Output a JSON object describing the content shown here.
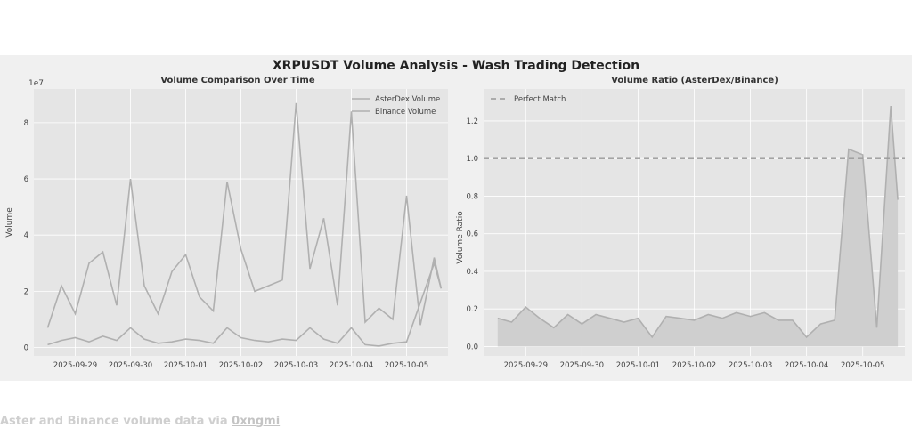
{
  "figure_title": "XRPUSDT Volume Analysis - Wash Trading Detection",
  "caption": {
    "text": "Aster and Binance volume data via ",
    "link_text": "0xngmi"
  },
  "colors": {
    "background": "#f0f0f0",
    "axes_bg": "#e5e5e5",
    "line": "#b0b0b0",
    "grid": "#ffffff",
    "reference": "#999999",
    "fill": "#cfcfcf"
  },
  "chart_data": [
    {
      "type": "line",
      "title": "Volume Comparison Over Time",
      "xlabel": "",
      "ylabel": "Volume",
      "scale_label": "1e7",
      "y_scale": 10000000,
      "ylim": [
        -3000000,
        92000000
      ],
      "xlim": [
        "2025-09-28 06:00",
        "2025-10-05 18:00"
      ],
      "y_ticks": [
        0,
        20000000,
        40000000,
        60000000,
        80000000
      ],
      "y_tick_labels": [
        "0",
        "2",
        "4",
        "6",
        "8"
      ],
      "x_ticks": [
        "2025-09-29",
        "2025-09-30",
        "2025-10-01",
        "2025-10-02",
        "2025-10-03",
        "2025-10-04",
        "2025-10-05"
      ],
      "grid": true,
      "legend_position": "top-right",
      "series": [
        {
          "name": "AsterDex Volume",
          "x": [
            "2025-09-28 12:00",
            "2025-09-28 18:00",
            "2025-09-29 00:00",
            "2025-09-29 06:00",
            "2025-09-29 12:00",
            "2025-09-29 18:00",
            "2025-09-30 00:00",
            "2025-09-30 06:00",
            "2025-09-30 12:00",
            "2025-09-30 18:00",
            "2025-10-01 00:00",
            "2025-10-01 06:00",
            "2025-10-01 12:00",
            "2025-10-01 18:00",
            "2025-10-02 00:00",
            "2025-10-02 06:00",
            "2025-10-02 12:00",
            "2025-10-02 18:00",
            "2025-10-03 00:00",
            "2025-10-03 06:00",
            "2025-10-03 12:00",
            "2025-10-03 18:00",
            "2025-10-04 00:00",
            "2025-10-04 06:00",
            "2025-10-04 12:00",
            "2025-10-04 18:00",
            "2025-10-05 00:00",
            "2025-10-05 06:00",
            "2025-10-05 12:00",
            "2025-10-05 15:00"
          ],
          "values": [
            1000000,
            2500000,
            3500000,
            2000000,
            4000000,
            2500000,
            7000000,
            3000000,
            1500000,
            2000000,
            3000000,
            2500000,
            1500000,
            7000000,
            3500000,
            2500000,
            2000000,
            3000000,
            2500000,
            7000000,
            3000000,
            1500000,
            7000000,
            1000000,
            500000,
            1500000,
            2000000,
            16000000,
            30000000,
            21000000
          ]
        },
        {
          "name": "Binance Volume",
          "x": [
            "2025-09-28 12:00",
            "2025-09-28 18:00",
            "2025-09-29 00:00",
            "2025-09-29 06:00",
            "2025-09-29 12:00",
            "2025-09-29 18:00",
            "2025-09-30 00:00",
            "2025-09-30 06:00",
            "2025-09-30 12:00",
            "2025-09-30 18:00",
            "2025-10-01 00:00",
            "2025-10-01 06:00",
            "2025-10-01 12:00",
            "2025-10-01 18:00",
            "2025-10-02 00:00",
            "2025-10-02 06:00",
            "2025-10-02 12:00",
            "2025-10-02 18:00",
            "2025-10-03 00:00",
            "2025-10-03 06:00",
            "2025-10-03 12:00",
            "2025-10-03 18:00",
            "2025-10-04 00:00",
            "2025-10-04 06:00",
            "2025-10-04 12:00",
            "2025-10-04 18:00",
            "2025-10-05 00:00",
            "2025-10-05 06:00",
            "2025-10-05 12:00",
            "2025-10-05 15:00"
          ],
          "values": [
            7000000,
            22000000,
            12000000,
            30000000,
            34000000,
            15000000,
            60000000,
            22000000,
            12000000,
            27000000,
            33000000,
            18000000,
            13000000,
            59000000,
            35000000,
            20000000,
            22000000,
            24000000,
            87000000,
            28000000,
            46000000,
            15000000,
            84000000,
            9000000,
            14000000,
            10000000,
            54000000,
            8000000,
            32000000,
            21000000
          ]
        }
      ]
    },
    {
      "type": "area",
      "title": "Volume Ratio (AsterDex/Binance)",
      "xlabel": "",
      "ylabel": "Volume Ratio",
      "ylim": [
        -0.05,
        1.37
      ],
      "xlim": [
        "2025-09-28 06:00",
        "2025-10-05 18:00"
      ],
      "y_ticks": [
        0.0,
        0.2,
        0.4,
        0.6,
        0.8,
        1.0,
        1.2
      ],
      "y_tick_labels": [
        "0.0",
        "0.2",
        "0.4",
        "0.6",
        "0.8",
        "1.0",
        "1.2"
      ],
      "x_ticks": [
        "2025-09-29",
        "2025-09-30",
        "2025-10-01",
        "2025-10-02",
        "2025-10-03",
        "2025-10-04",
        "2025-10-05"
      ],
      "grid": true,
      "legend_position": "top-left",
      "reference_line": {
        "name": "Perfect Match",
        "y": 1.0,
        "style": "dashed"
      },
      "series": [
        {
          "name": "",
          "x": [
            "2025-09-28 12:00",
            "2025-09-28 18:00",
            "2025-09-29 00:00",
            "2025-09-29 06:00",
            "2025-09-29 12:00",
            "2025-09-29 18:00",
            "2025-09-30 00:00",
            "2025-09-30 06:00",
            "2025-09-30 12:00",
            "2025-09-30 18:00",
            "2025-10-01 00:00",
            "2025-10-01 06:00",
            "2025-10-01 12:00",
            "2025-10-01 18:00",
            "2025-10-02 00:00",
            "2025-10-02 06:00",
            "2025-10-02 12:00",
            "2025-10-02 18:00",
            "2025-10-03 00:00",
            "2025-10-03 06:00",
            "2025-10-03 12:00",
            "2025-10-03 18:00",
            "2025-10-04 00:00",
            "2025-10-04 06:00",
            "2025-10-04 12:00",
            "2025-10-04 18:00",
            "2025-10-05 00:00",
            "2025-10-05 06:00",
            "2025-10-05 12:00",
            "2025-10-05 15:00"
          ],
          "values": [
            0.15,
            0.13,
            0.21,
            0.15,
            0.1,
            0.17,
            0.12,
            0.17,
            0.15,
            0.13,
            0.15,
            0.05,
            0.16,
            0.15,
            0.14,
            0.17,
            0.15,
            0.18,
            0.16,
            0.18,
            0.14,
            0.14,
            0.05,
            0.12,
            0.14,
            1.05,
            1.02,
            0.1,
            1.28,
            0.78
          ]
        }
      ]
    }
  ]
}
